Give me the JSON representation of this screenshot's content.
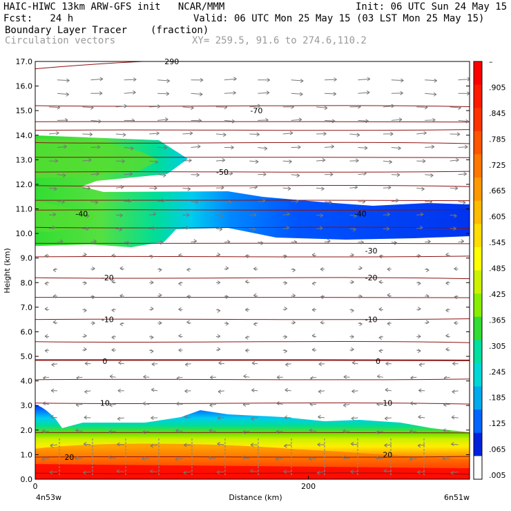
{
  "header": {
    "line1_left": "HAIC-HIWC 13km ARW-GFS init   NCAR/MMM",
    "line1_right": "Init: 06 UTC Sun 24 May 15",
    "line2_left": "Fcst:   24 h",
    "line2_right": "Valid: 06 UTC Mon 25 May 15 (03 LST Mon 25 May 15)",
    "field": "Boundary Layer Tracer",
    "units": "(fraction)",
    "vectors": "Circulation vectors",
    "xsec": "XY= 259.5, 91.6 to 274.6,110.2"
  },
  "chart_data": {
    "type": "heatmap",
    "xlabel": "Distance (km)",
    "ylabel": "Height (km)",
    "xlim": [
      0,
      318
    ],
    "ylim": [
      0,
      17
    ],
    "x_ticks": [
      0,
      200
    ],
    "x_end_labels": [
      "4n53w",
      "6n51w"
    ],
    "y_ticks": [
      "0.0",
      "1.0",
      "2.0",
      "3.0",
      "4.0",
      "5.0",
      "6.0",
      "7.0",
      "8.0",
      "9.0",
      "10.0",
      "11.0",
      "12.0",
      "13.0",
      "14.0",
      "15.0",
      "16.0",
      "17.0"
    ],
    "colorbar": {
      "labels": [
        "–",
        ".905",
        ".845",
        ".785",
        ".725",
        ".665",
        ".605",
        ".545",
        ".485",
        ".425",
        ".365",
        ".305",
        ".245",
        ".185",
        ".125",
        ".065",
        ".005"
      ],
      "colors": [
        "#ff0000",
        "#ff1a00",
        "#ff3300",
        "#ff5500",
        "#ff7700",
        "#ff9900",
        "#ffbb00",
        "#ffdd00",
        "#ffff00",
        "#ccf200",
        "#88ee00",
        "#33dd33",
        "#00e0a0",
        "#00d8d8",
        "#00aaee",
        "#0066ff",
        "#0022dd",
        "#ffffff"
      ]
    },
    "contour_labels": [
      {
        "text": "-70",
        "x": 162,
        "y": 15.0
      },
      {
        "text": "-50",
        "x": 137,
        "y": 12.5
      },
      {
        "text": "-40",
        "x": 34,
        "y": 10.8
      },
      {
        "text": "-40",
        "x": 238,
        "y": 10.8
      },
      {
        "text": "-30",
        "x": 246,
        "y": 9.3
      },
      {
        "text": "-20",
        "x": 53,
        "y": 8.2
      },
      {
        "text": "-20",
        "x": 246,
        "y": 8.2
      },
      {
        "text": "-10",
        "x": 53,
        "y": 6.5
      },
      {
        "text": "-10",
        "x": 246,
        "y": 6.5
      },
      {
        "text": "0",
        "x": 51,
        "y": 4.8
      },
      {
        "text": "0",
        "x": 251,
        "y": 4.8
      },
      {
        "text": "10",
        "x": 51,
        "y": 3.1
      },
      {
        "text": "10",
        "x": 258,
        "y": 3.1
      },
      {
        "text": "20",
        "x": 25,
        "y": 0.9
      },
      {
        "text": "20",
        "x": 258,
        "y": 1.0
      },
      {
        "text": "290",
        "x": 100,
        "y": 17.0
      }
    ]
  }
}
